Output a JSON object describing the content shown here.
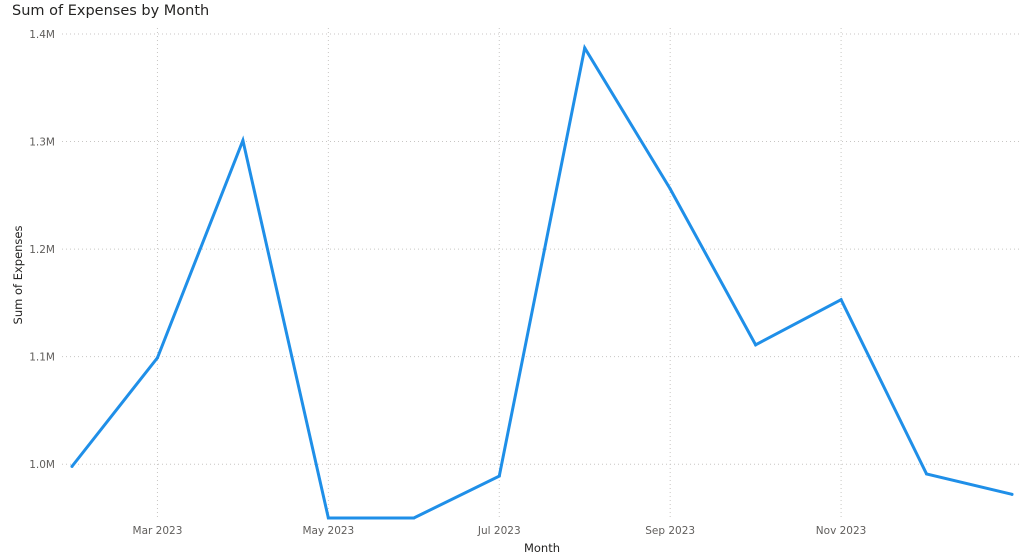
{
  "chart_data": {
    "type": "line",
    "title": "Sum of Expenses by Month",
    "xlabel": "Month",
    "ylabel": "Sum of Expenses",
    "x": [
      "2023-02",
      "2023-03",
      "2023-04",
      "2023-05",
      "2023-06",
      "2023-07",
      "2023-08",
      "2023-09",
      "2023-10",
      "2023-11",
      "2023-12",
      "2024-01"
    ],
    "x_tick_labels": [
      "Mar 2023",
      "May 2023",
      "Jul 2023",
      "Sep 2023",
      "Nov 2023"
    ],
    "x_tick_months": [
      "2023-03",
      "2023-05",
      "2023-07",
      "2023-09",
      "2023-11"
    ],
    "y_tick_labels": [
      "1.0M",
      "1.1M",
      "1.2M",
      "1.3M",
      "1.4M"
    ],
    "y_tick_values": [
      1000000,
      1100000,
      1200000,
      1300000,
      1400000
    ],
    "ylim": [
      950000,
      1400000
    ],
    "grid": true,
    "series": [
      {
        "values": [
          998000,
          1099000,
          1301000,
          950000,
          950000,
          989000,
          1387000,
          1256000,
          1111000,
          1153000,
          991000,
          972000
        ],
        "color": "#1f8fe8"
      }
    ]
  }
}
